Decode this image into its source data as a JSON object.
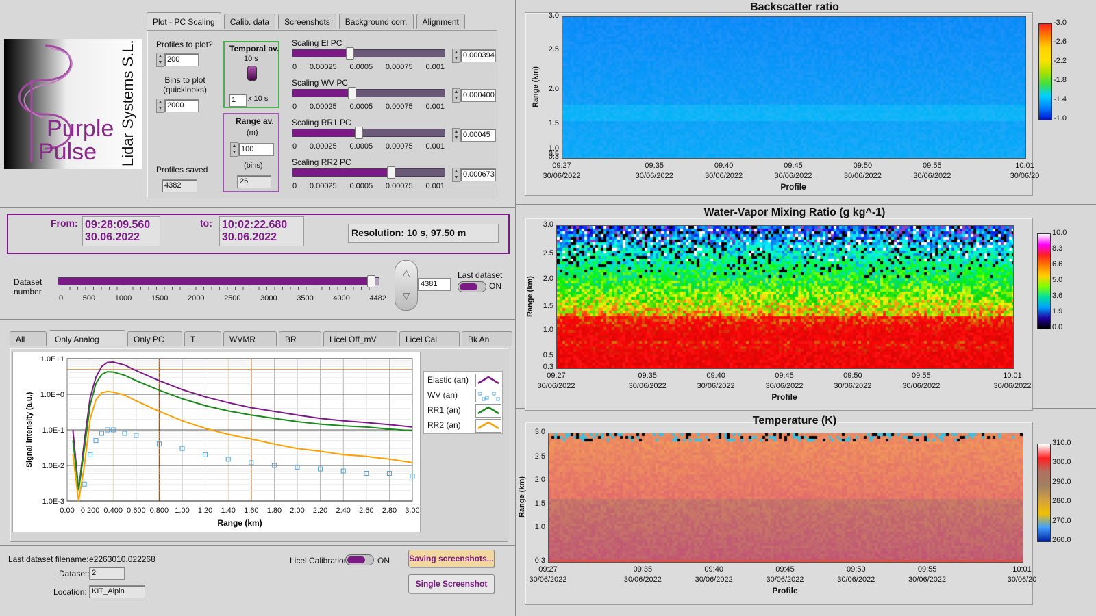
{
  "logo": {
    "brand_line1": "Purple",
    "brand_line2": "Pulse",
    "company": "Lidar Systems S.L."
  },
  "config_tabs": [
    "Plot - PC Scaling",
    "Calib. data",
    "Screenshots",
    "Background corr.",
    "Alignment"
  ],
  "config": {
    "profiles_to_plot_label": "Profiles to plot?",
    "profiles_to_plot": "200",
    "bins_to_plot_label": "Bins to plot\n(quicklooks)",
    "bins_to_plot": "2000",
    "profiles_saved_label": "Profiles saved",
    "profiles_saved": "4382",
    "temporal_av_label": "Temporal av.",
    "temporal_av_value": "10 s",
    "temporal_av_count": "1",
    "temporal_av_unit": "x 10 s",
    "range_av_label": "Range av.",
    "range_av_unit_m": "(m)",
    "range_av_m": "100",
    "range_av_unit_bins": "(bins)",
    "range_av_bins": "26",
    "scaling": [
      {
        "label": "Scaling El PC",
        "value": "0.000394",
        "level": 0.39
      },
      {
        "label": "Scaling WV PC",
        "value": "0.000400",
        "level": 0.4
      },
      {
        "label": "Scaling RR1 PC",
        "value": "0.00045",
        "level": 0.45
      },
      {
        "label": "Scaling RR2 PC",
        "value": "0.000673",
        "level": 0.67
      }
    ],
    "scaling_ticks": [
      "0",
      "0.00025",
      "0.0005",
      "0.00075",
      "0.001"
    ]
  },
  "time_range": {
    "from_label": "From:",
    "from_time": "09:28:09.560",
    "from_date": "30.06.2022",
    "to_label": "to:",
    "to_time": "10:02:22.680",
    "to_date": "30.06.2022",
    "resolution": "Resolution: 10 s, 97.50 m"
  },
  "dataset": {
    "label": "Dataset\nnumber",
    "value": "4381",
    "level": 0.978,
    "ticks": [
      "0",
      "500",
      "1000",
      "1500",
      "2000",
      "2500",
      "3000",
      "3500",
      "4000",
      "4482"
    ],
    "last_dataset_label": "Last dataset",
    "last_dataset_state": "ON"
  },
  "plot_tabs": [
    "All",
    "Only Analog",
    "Only PC",
    "T",
    "WVMR",
    "BR",
    "Licel Off_mV",
    "Licel Cal",
    "Bk An"
  ],
  "legend": [
    "Elastic (an)",
    "WV (an)",
    "RR1 (an)",
    "RR2 (an)"
  ],
  "colors": {
    "purple": "#7b1a86",
    "green": "#1a8a1a",
    "orange": "#ffa000",
    "blue": "#4aa0e0"
  },
  "chart_data": {
    "type": "line",
    "xlabel": "Range (km)",
    "ylabel": "Signal intensity (a.u.)",
    "log_y": true,
    "xlim": [
      0,
      3
    ],
    "ylim": [
      0.001,
      10
    ],
    "x_ticks": [
      "0.00",
      "0.200",
      "0.400",
      "0.600",
      "0.800",
      "1.00",
      "1.20",
      "1.40",
      "1.60",
      "1.80",
      "2.00",
      "2.20",
      "2.40",
      "2.60",
      "2.80",
      "3.00"
    ],
    "y_ticks": [
      "1.0E-3",
      "1.0E-2",
      "1.0E-1",
      "1.0E+0",
      "1.0E+1"
    ],
    "x": [
      0.05,
      0.1,
      0.15,
      0.2,
      0.25,
      0.3,
      0.35,
      0.4,
      0.5,
      0.6,
      0.8,
      1.0,
      1.2,
      1.4,
      1.6,
      1.8,
      2.0,
      2.2,
      2.4,
      2.6,
      2.8,
      3.0
    ],
    "series": [
      {
        "name": "Elastic (an)",
        "values": [
          0.1,
          0.002,
          0.05,
          0.8,
          3.0,
          6.0,
          7.8,
          8.0,
          6.6,
          4.6,
          2.4,
          1.35,
          0.85,
          0.58,
          0.42,
          0.33,
          0.26,
          0.21,
          0.18,
          0.16,
          0.14,
          0.12
        ]
      },
      {
        "name": "WV (an)",
        "values": [
          null,
          null,
          0.003,
          0.02,
          0.05,
          0.08,
          0.1,
          0.1,
          0.08,
          0.07,
          0.04,
          0.03,
          0.02,
          0.015,
          0.012,
          0.01,
          0.009,
          0.008,
          0.007,
          0.006,
          0.006,
          0.005
        ]
      },
      {
        "name": "RR1 (an)",
        "values": [
          0.05,
          0.002,
          0.03,
          0.5,
          2.0,
          3.6,
          4.3,
          4.2,
          3.4,
          2.4,
          1.3,
          0.75,
          0.48,
          0.34,
          0.26,
          0.21,
          0.17,
          0.145,
          0.13,
          0.12,
          0.105,
          0.095
        ]
      },
      {
        "name": "RR2 (an)",
        "values": [
          0.02,
          0.001,
          0.01,
          0.2,
          0.7,
          1.1,
          1.2,
          1.15,
          0.95,
          0.65,
          0.33,
          0.18,
          0.11,
          0.075,
          0.055,
          0.04,
          0.03,
          0.025,
          0.02,
          0.018,
          0.015,
          0.012
        ]
      }
    ]
  },
  "status": {
    "filename_label": "Last dataset filename:",
    "filename": "e2263010.022268",
    "dataset_label": "Dataset:",
    "dataset": "2",
    "location_label": "Location:",
    "location": "KIT_Alpin",
    "licel_label": "Licel Calibration",
    "licel_state": "ON",
    "saving_button": "Saving screenshots...",
    "single_button": "Single Screenshot"
  },
  "heatmaps": [
    {
      "title": "Backscatter ratio",
      "ylabel": "Range (km)",
      "xlabel": "Profile",
      "y_ticks": [
        "3.0",
        "2.5",
        "2.0",
        "1.5",
        "1.0",
        "0.5",
        "0.3"
      ],
      "x_ticks": [
        [
          "09:27",
          "30/06/2022"
        ],
        [
          "09:35",
          "30/06/2022"
        ],
        [
          "09:40",
          "30/06/2022"
        ],
        [
          "09:45",
          "30/06/2022"
        ],
        [
          "09:50",
          "30/06/2022"
        ],
        [
          "09:55",
          "30/06/2022"
        ],
        [
          "10:01",
          "30/06/20"
        ]
      ],
      "cbar_ticks": [
        "-3.0",
        "-2.6",
        "-2.2",
        "-1.8",
        "-1.4",
        "-1.0"
      ]
    },
    {
      "title": "Water-Vapor Mixing Ratio  (g kg^-1)",
      "ylabel": "Range (km)",
      "xlabel": "Profile",
      "y_ticks": [
        "3.0",
        "2.5",
        "2.0",
        "1.5",
        "1.0",
        "0.5",
        "0.3"
      ],
      "x_ticks": [
        [
          "09:27",
          "30/06/2022"
        ],
        [
          "09:35",
          "30/06/2022"
        ],
        [
          "09:40",
          "30/06/2022"
        ],
        [
          "09:45",
          "30/06/2022"
        ],
        [
          "09:50",
          "30/06/2022"
        ],
        [
          "09:55",
          "30/06/2022"
        ],
        [
          "10:01",
          "30/06/2022"
        ]
      ],
      "cbar_ticks": [
        "10.0",
        "8.3",
        "6.6",
        "5.0",
        "3.6",
        "1.9",
        "0.0"
      ]
    },
    {
      "title": "Temperature (K)",
      "ylabel": "Range (km)",
      "xlabel": "Profile",
      "y_ticks": [
        "3.0",
        "2.5",
        "2.0",
        "1.5",
        "1.0",
        "0.3"
      ],
      "x_ticks": [
        [
          "09:27",
          "30/06/2022"
        ],
        [
          "09:35",
          "30/06/2022"
        ],
        [
          "09:40",
          "30/06/2022"
        ],
        [
          "09:45",
          "30/06/2022"
        ],
        [
          "09:50",
          "30/06/2022"
        ],
        [
          "09:55",
          "30/06/2022"
        ],
        [
          "10:01",
          "30/06/20"
        ]
      ],
      "cbar_ticks": [
        "310.0",
        "300.0",
        "290.0",
        "280.0",
        "270.0",
        "260.0"
      ]
    }
  ]
}
